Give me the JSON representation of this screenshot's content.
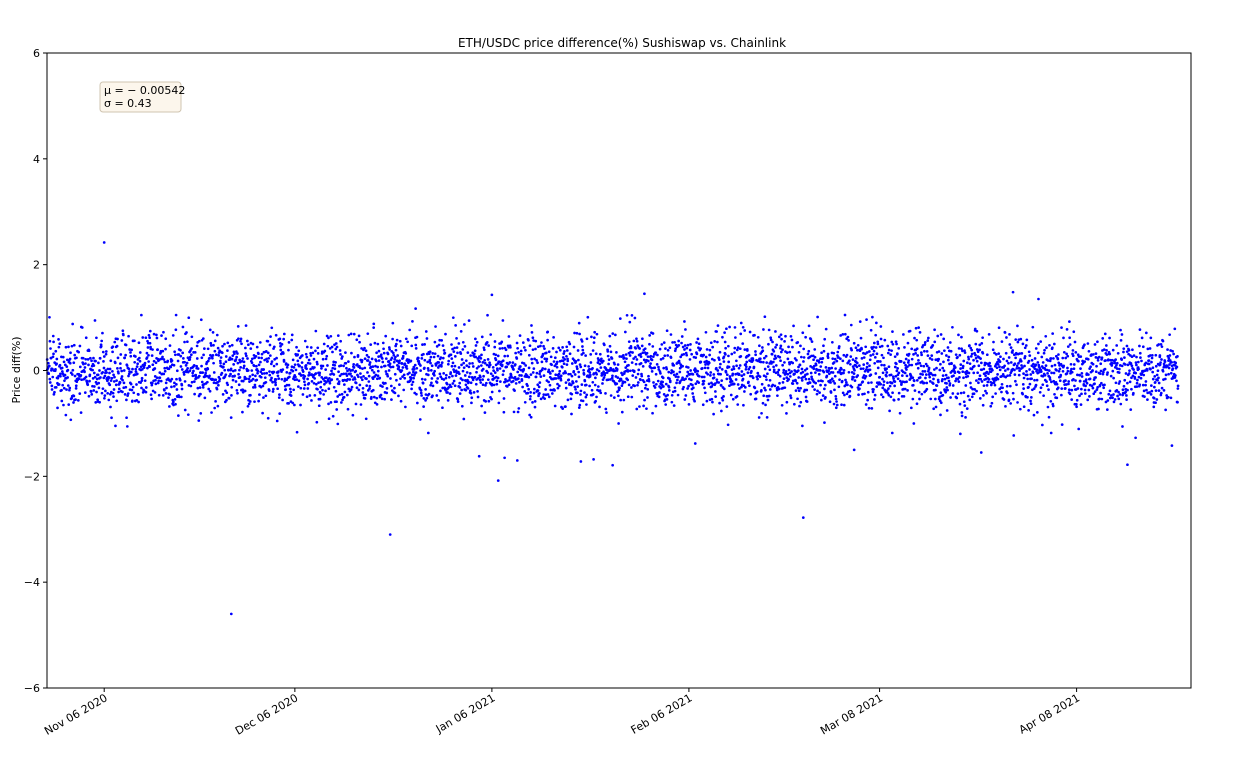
{
  "chart_data": {
    "type": "scatter",
    "title": "ETH/USDC price difference(%) Sushiswap vs. Chainlink",
    "xlabel": "",
    "ylabel": "Price diff(%)",
    "x_axis_type": "date",
    "xlim": [
      "2020-10-28",
      "2021-04-26"
    ],
    "ylim": [
      -6,
      6
    ],
    "y_ticks": [
      -6,
      -4,
      -2,
      0,
      2,
      4,
      6
    ],
    "x_ticks": [
      {
        "date": "2020-11-06",
        "label": "Nov 06 2020"
      },
      {
        "date": "2020-12-06",
        "label": "Dec 06 2020"
      },
      {
        "date": "2021-01-06",
        "label": "Jan 06 2021"
      },
      {
        "date": "2021-02-06",
        "label": "Feb 06 2021"
      },
      {
        "date": "2021-03-08",
        "label": "Mar 08 2021"
      },
      {
        "date": "2021-04-08",
        "label": "Apr 08 2021"
      }
    ],
    "grid": false,
    "legend": null,
    "stats_box": {
      "position": "top-left",
      "mu_line": "μ = − 0.00542",
      "sigma_line": "σ = 0.43",
      "mu": -0.00542,
      "sigma": 0.43
    },
    "series": [
      {
        "color": "#0000ff",
        "marker_size": 2,
        "x_start": "2020-10-28",
        "x_end": "2021-04-24",
        "n_points": 4300,
        "dense_band": {
          "mean": -0.00542,
          "std": 0.43
        },
        "notable_points": [
          {
            "x": "2020-11-06",
            "y": 2.42
          },
          {
            "x": "2020-11-26",
            "y": -4.6
          },
          {
            "x": "2020-12-21",
            "y": -3.1
          },
          {
            "x": "2020-12-25",
            "y": 1.17
          },
          {
            "x": "2020-12-27",
            "y": -1.18
          },
          {
            "x": "2021-01-04",
            "y": -1.62
          },
          {
            "x": "2021-01-06",
            "y": 1.43
          },
          {
            "x": "2021-01-07",
            "y": -2.08
          },
          {
            "x": "2021-01-08",
            "y": -1.65
          },
          {
            "x": "2021-01-10",
            "y": -1.7
          },
          {
            "x": "2021-01-20",
            "y": -1.72
          },
          {
            "x": "2021-01-22",
            "y": -1.68
          },
          {
            "x": "2021-01-25",
            "y": -1.79
          },
          {
            "x": "2021-01-30",
            "y": 1.45
          },
          {
            "x": "2021-02-07",
            "y": -1.38
          },
          {
            "x": "2021-02-24",
            "y": -2.78
          },
          {
            "x": "2021-03-04",
            "y": -1.5
          },
          {
            "x": "2021-03-10",
            "y": -1.18
          },
          {
            "x": "2021-03-24",
            "y": -1.55
          },
          {
            "x": "2021-03-29",
            "y": 1.48
          },
          {
            "x": "2021-04-02",
            "y": 1.35
          },
          {
            "x": "2021-04-04",
            "y": -1.18
          },
          {
            "x": "2021-04-16",
            "y": -1.78
          },
          {
            "x": "2021-04-23",
            "y": -1.42
          }
        ]
      }
    ]
  }
}
